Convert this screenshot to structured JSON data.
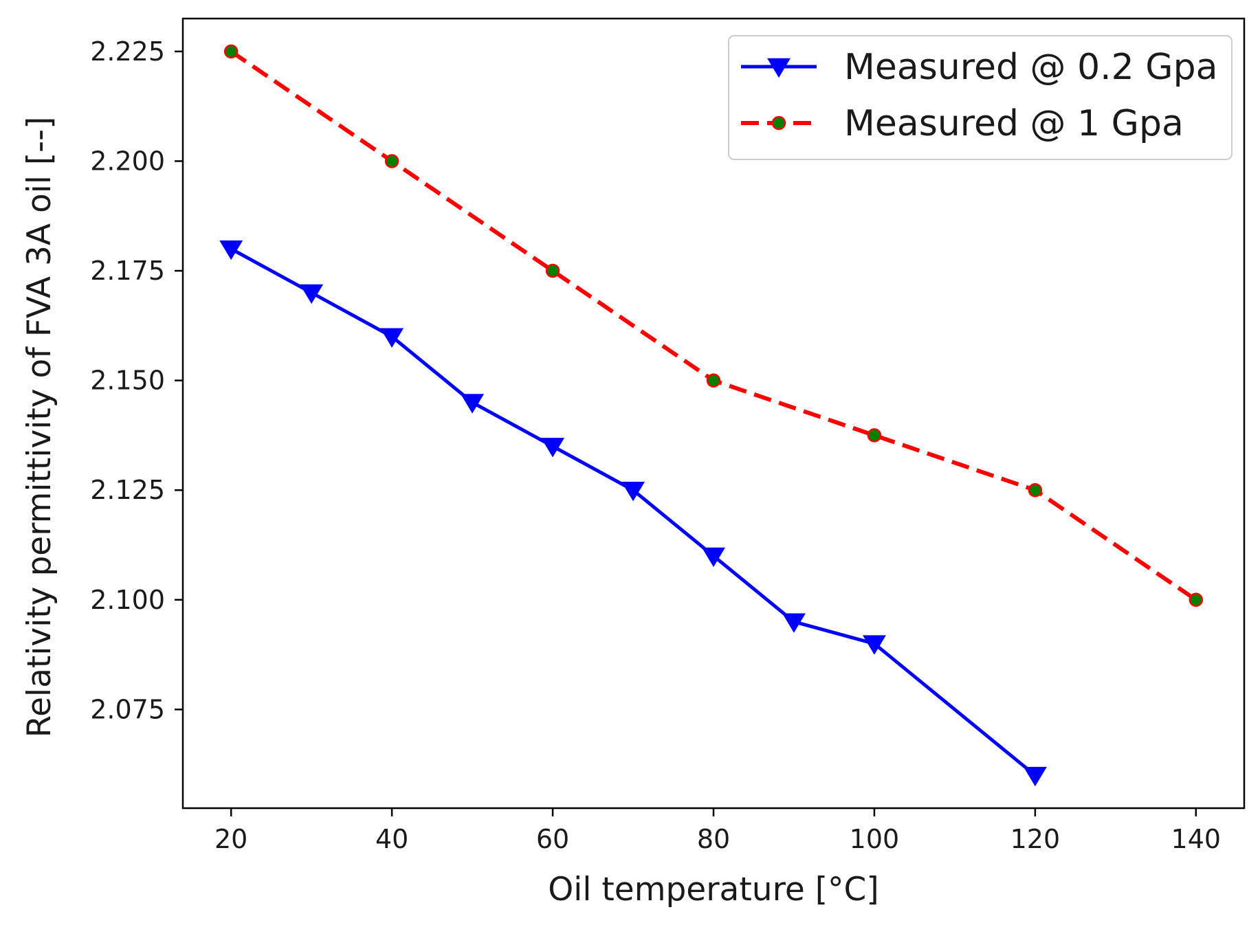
{
  "chart_data": {
    "type": "line",
    "title": "",
    "xlabel": "Oil temperature [°C]",
    "ylabel": "Relativity permittivity of FVA 3A oil [--]",
    "xlim": [
      14,
      146
    ],
    "ylim": [
      2.0525,
      2.2325
    ],
    "xticks": [
      20,
      40,
      60,
      80,
      100,
      120,
      140
    ],
    "yticks": [
      2.075,
      2.1,
      2.125,
      2.15,
      2.175,
      2.2,
      2.225
    ],
    "xtick_labels": [
      "20",
      "40",
      "60",
      "80",
      "100",
      "120",
      "140"
    ],
    "ytick_labels": [
      "2.075",
      "2.100",
      "2.125",
      "2.150",
      "2.175",
      "2.200",
      "2.225"
    ],
    "grid": false,
    "legend_position": "top-right",
    "series": [
      {
        "name": "Measured @ 0.2 Gpa",
        "color": "#0000ff",
        "line_style": "solid",
        "marker": "triangle-down",
        "x": [
          20,
          30,
          40,
          50,
          60,
          70,
          80,
          90,
          100,
          120
        ],
        "values": [
          2.18,
          2.17,
          2.16,
          2.145,
          2.135,
          2.125,
          2.11,
          2.095,
          2.09,
          2.06
        ]
      },
      {
        "name": "Measured @ 1 Gpa",
        "color": "#ff0000",
        "marker_face_color": "#008000",
        "line_style": "dashed",
        "marker": "circle",
        "x": [
          20,
          40,
          60,
          80,
          100,
          120,
          140
        ],
        "values": [
          2.225,
          2.2,
          2.175,
          2.15,
          2.1375,
          2.125,
          2.1
        ]
      }
    ]
  }
}
